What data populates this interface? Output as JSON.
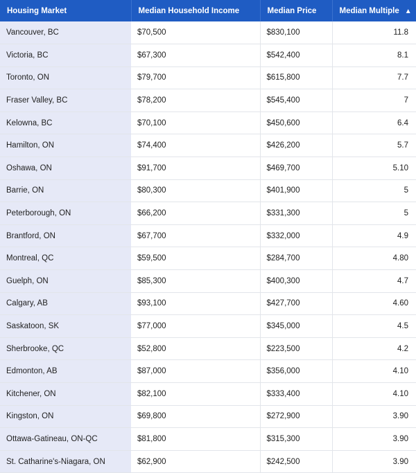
{
  "table": {
    "headers": {
      "market": "Housing Market",
      "income": "Median Household Income",
      "price": "Median Price",
      "multiple": "Median Multiple"
    },
    "sort_indicator": "▲",
    "rows": [
      {
        "market": "Vancouver, BC",
        "income": "$70,500",
        "price": "$830,100",
        "multiple": "11.8"
      },
      {
        "market": "Victoria, BC",
        "income": "$67,300",
        "price": "$542,400",
        "multiple": "8.1"
      },
      {
        "market": "Toronto, ON",
        "income": "$79,700",
        "price": "$615,800",
        "multiple": "7.7"
      },
      {
        "market": "Fraser Valley, BC",
        "income": "$78,200",
        "price": "$545,400",
        "multiple": "7"
      },
      {
        "market": "Kelowna, BC",
        "income": "$70,100",
        "price": "$450,600",
        "multiple": "6.4"
      },
      {
        "market": "Hamilton, ON",
        "income": "$74,400",
        "price": "$426,200",
        "multiple": "5.7"
      },
      {
        "market": "Oshawa, ON",
        "income": "$91,700",
        "price": "$469,700",
        "multiple": "5.10"
      },
      {
        "market": "Barrie, ON",
        "income": "$80,300",
        "price": "$401,900",
        "multiple": "5"
      },
      {
        "market": "Peterborough, ON",
        "income": "$66,200",
        "price": "$331,300",
        "multiple": "5"
      },
      {
        "market": "Brantford, ON",
        "income": "$67,700",
        "price": "$332,000",
        "multiple": "4.9"
      },
      {
        "market": "Montreal, QC",
        "income": "$59,500",
        "price": "$284,700",
        "multiple": "4.80"
      },
      {
        "market": "Guelph, ON",
        "income": "$85,300",
        "price": "$400,300",
        "multiple": "4.7"
      },
      {
        "market": "Calgary, AB",
        "income": "$93,100",
        "price": "$427,700",
        "multiple": "4.60"
      },
      {
        "market": "Saskatoon, SK",
        "income": "$77,000",
        "price": "$345,000",
        "multiple": "4.5"
      },
      {
        "market": "Sherbrooke, QC",
        "income": "$52,800",
        "price": "$223,500",
        "multiple": "4.2"
      },
      {
        "market": "Edmonton, AB",
        "income": "$87,000",
        "price": "$356,000",
        "multiple": "4.10"
      },
      {
        "market": "Kitchener, ON",
        "income": "$82,100",
        "price": "$333,400",
        "multiple": "4.10"
      },
      {
        "market": "Kingston, ON",
        "income": "$69,800",
        "price": "$272,900",
        "multiple": "3.90"
      },
      {
        "market": "Ottawa-Gatineau, ON-QC",
        "income": "$81,800",
        "price": "$315,300",
        "multiple": "3.90"
      },
      {
        "market": "St. Catharine's-Niagara, ON",
        "income": "$62,900",
        "price": "$242,500",
        "multiple": "3.90"
      }
    ]
  },
  "colors": {
    "header_bg": "#1f5cc3",
    "market_column_bg": "#e6e9f7",
    "row_border": "#e2e5ea"
  }
}
